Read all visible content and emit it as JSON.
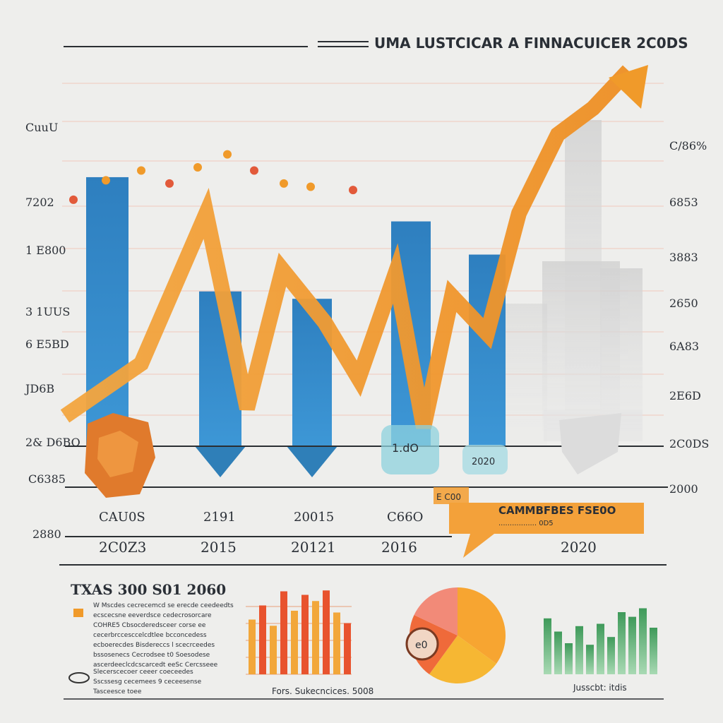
{
  "header": {
    "title": "UMA LUSTCICAR A FINNACUICER 2C0DS"
  },
  "colors": {
    "background": "#eeeeec",
    "bar_blue": "#2f86c2",
    "line_orange": "#f09a2a",
    "accent_red": "#e25a3a",
    "green": "#4aa065",
    "grid": "#f2b9aa",
    "axis": "#2b2f33"
  },
  "chart_data": [
    {
      "type": "bar",
      "title": "UMA LUSTCICAR A FINNACUICER 2C0DS",
      "left_ticks": [
        "CuuU",
        "7202",
        "1 E800",
        "3 1UUS",
        "6 E5BD",
        "JD6B",
        "2& D6BO",
        "C6385",
        "2880"
      ],
      "right_ticks": [
        "C/86%",
        "6853",
        "3883",
        "2650",
        "6A83",
        "2E6D",
        "2C0DS",
        "2000"
      ],
      "categories_upper": [
        "CAU0S",
        "2191",
        "20015",
        "C66O"
      ],
      "categories_lower": [
        "2C0Z3",
        "2015",
        "20121",
        "2016",
        "2020"
      ],
      "bars": [
        {
          "category": "2C0Z3",
          "value": 0.73
        },
        {
          "category": "2015",
          "value": 0.42
        },
        {
          "category": "20121",
          "value": 0.4
        },
        {
          "category": "2016",
          "value": 0.61
        },
        {
          "category": "2020",
          "value": 0.52
        }
      ],
      "line_series": {
        "name": "",
        "values": [
          0.08,
          0.22,
          0.62,
          0.1,
          0.47,
          0.33,
          0.18,
          0.46,
          0.05,
          0.4,
          0.3,
          0.62,
          0.83,
          0.9,
          1.0
        ]
      },
      "dot_trail": [
        0.76,
        0.82,
        0.85,
        0.81,
        0.86,
        0.9,
        0.85,
        0.81,
        0.8,
        0.79
      ],
      "callout": {
        "heading": "CAMMBFBES FSE0O",
        "sub": "................. 0D5"
      },
      "grid": true,
      "legend": "none"
    },
    {
      "type": "bar",
      "values": [
        0.62,
        0.78,
        0.55,
        0.94,
        0.72,
        0.9,
        0.83,
        0.95,
        0.7,
        0.58
      ],
      "caption": "Fors. Sukecncices. 5008"
    },
    {
      "type": "pie",
      "values": [
        35,
        25,
        22,
        18
      ],
      "colors": [
        "#f7a531",
        "#f6b733",
        "#ef6a3a",
        "#f28a78"
      ],
      "badge": "e0"
    },
    {
      "type": "bar",
      "values": [
        0.72,
        0.55,
        0.4,
        0.62,
        0.38,
        0.65,
        0.48,
        0.8,
        0.74,
        0.85,
        0.6
      ],
      "caption": "Jusscbt: itdis"
    }
  ],
  "bottom_left": {
    "heading": "TXAS 300 S01 2060",
    "paragraph1": [
      "W Mscdes cecrecemcd se erecde ceedeedts",
      "ecscecsne eeverdsce cedecrosorcare",
      "COHRE5 Cbsocderedsceer corse ee",
      "cecerbrccesccelcdtlee bcconcedess",
      "ecboerecdes Bisdereccs l scecrceedes",
      "bssosenecs Cecrodsee t0 Soesodese",
      "ascerdeeclcdcscarcedt eeSc Cercsseee"
    ],
    "paragraph2": [
      "Slecerscecoer ceeer coeceedes",
      "Sscssesg cecemees 9 ceceesense",
      "Tasceesce toee"
    ]
  },
  "city_labels": {
    "badge1": "1.dO",
    "badge2": "2020",
    "badge3": "E C00"
  }
}
